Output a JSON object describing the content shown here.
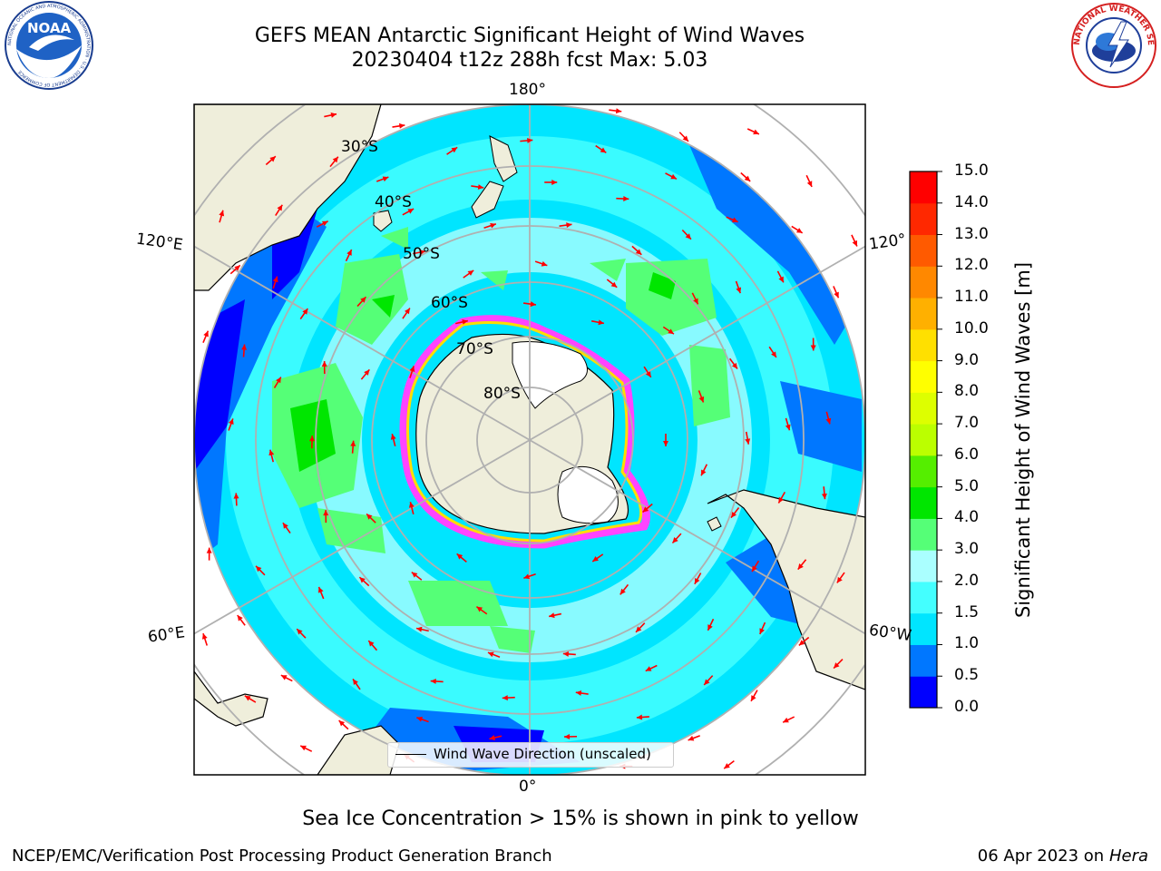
{
  "title": {
    "line1": "GEFS MEAN Antarctic Significant Height of Wind Waves",
    "line2": "20230404 t12z 288h fcst   Max: 5.03"
  },
  "logos": {
    "noaa_text": "NOAA",
    "noaa_ring": "NATIONAL OCEANIC AND ATMOSPHERIC ADMINISTRATION · U.S. DEPARTMENT OF COMMERCE",
    "nws_ring": "NATIONAL WEATHER SERVICE"
  },
  "map": {
    "projection": "south polar stereographic",
    "longitude_labels": {
      "top": "180°",
      "bottom": "0°",
      "upper_left": "120°E",
      "lower_left": "60°E",
      "upper_right": "120°",
      "lower_right": "60°W"
    },
    "latitude_labels": [
      "30°S",
      "40°S",
      "50°S",
      "60°S",
      "70°S",
      "80°S"
    ],
    "legend": "Wind Wave Direction (unscaled)",
    "vector_color": "#ff0000",
    "land_color": "#efeedb",
    "ice_edge_colors": [
      "#ff44ff",
      "#ffdd00"
    ]
  },
  "chart_data": {
    "type": "heatmap",
    "variable": "Significant Height of Wind Waves",
    "units": "m",
    "max_value": 5.03,
    "colorbar": {
      "label": "Significant Height of Wind Waves [m]",
      "ticks": [
        "0.0",
        "0.5",
        "1.0",
        "1.5",
        "2.0",
        "3.0",
        "4.0",
        "5.0",
        "6.0",
        "7.0",
        "8.0",
        "9.0",
        "10.0",
        "11.0",
        "12.0",
        "13.0",
        "14.0",
        "15.0"
      ],
      "colors": [
        "#0000ff",
        "#0077ff",
        "#00e5ff",
        "#44ffff",
        "#aaffff",
        "#55ff77",
        "#00e600",
        "#55ee00",
        "#bbff00",
        "#ddff00",
        "#ffff00",
        "#ffe000",
        "#ffb000",
        "#ff8800",
        "#ff5a00",
        "#ff2800",
        "#ff0000"
      ]
    }
  },
  "note": "Sea Ice Concentration > 15% is shown in pink to yellow",
  "footer": {
    "left": "NCEP/EMC/Verification Post Processing Product Generation Branch",
    "right_date": "06 Apr 2023 on ",
    "right_machine": "Hera"
  }
}
